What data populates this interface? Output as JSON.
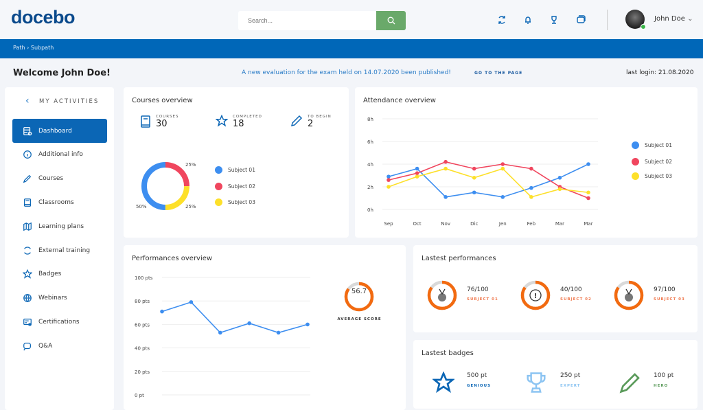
{
  "header": {
    "logo": "docebo",
    "search_placeholder": "Search...",
    "user_name": "John Doe"
  },
  "breadcrumb": {
    "path": "Path",
    "separator": "›",
    "subpath": "Subpath"
  },
  "welcome": {
    "title": "Welcome John Doe!",
    "notice": "A new evaluation for the exam held on 14.07.2020 been published!",
    "link": "GO TO THE PAGE",
    "last_login": "last login: 21.08.2020"
  },
  "sidebar": {
    "title": "MY ACTIVITIES",
    "items": [
      {
        "label": "Dashboard",
        "icon": "dashboard-icon"
      },
      {
        "label": "Additional info",
        "icon": "info-icon"
      },
      {
        "label": "Courses",
        "icon": "pencil-icon"
      },
      {
        "label": "Classrooms",
        "icon": "book-icon"
      },
      {
        "label": "Learning plans",
        "icon": "map-icon"
      },
      {
        "label": "External training",
        "icon": "sync-icon"
      },
      {
        "label": "Badges",
        "icon": "star-icon"
      },
      {
        "label": "Webinars",
        "icon": "globe-icon"
      },
      {
        "label": "Certifications",
        "icon": "certificate-icon"
      },
      {
        "label": "Q&A",
        "icon": "chat-icon"
      }
    ]
  },
  "courses": {
    "title": "Courses overview",
    "stats": [
      {
        "label": "COURSES",
        "value": "30"
      },
      {
        "label": "COMPLETED",
        "value": "18"
      },
      {
        "label": "TO BEGIN",
        "value": "2"
      }
    ]
  },
  "colors": {
    "blue": "#3d8ef0",
    "red": "#f0465e",
    "yellow": "#fde02a",
    "orange": "#f26a10",
    "primary": "#0b66b5",
    "green": "#6aa96a"
  },
  "chart_data": [
    {
      "type": "pie",
      "title": "",
      "categories": [
        "Subject 01",
        "Subject 02",
        "Subject 03"
      ],
      "values": [
        50,
        25,
        25
      ],
      "labels": [
        "50%",
        "25%",
        "25%"
      ]
    },
    {
      "type": "line",
      "title": "Attendance overview",
      "categories": [
        "Sep",
        "Oct",
        "Nov",
        "Dic",
        "Jen",
        "Feb",
        "Mar",
        "Mar"
      ],
      "yticks": [
        "0h",
        "2h",
        "4h",
        "6h",
        "8h"
      ],
      "ylim": [
        0,
        8
      ],
      "grid": true,
      "legend": "right",
      "series": [
        {
          "name": "Subject 01",
          "values": [
            2.9,
            3.6,
            1.1,
            1.5,
            1.1,
            1.9,
            2.8,
            4.0
          ]
        },
        {
          "name": "Subject 02",
          "values": [
            2.6,
            3.2,
            4.2,
            3.6,
            4.0,
            3.6,
            2.0,
            1.0
          ]
        },
        {
          "name": "Subject 03",
          "values": [
            2.0,
            2.9,
            3.6,
            2.8,
            3.6,
            1.1,
            1.8,
            1.5
          ]
        }
      ]
    },
    {
      "type": "line",
      "title": "Performances overview",
      "yticks": [
        "0 pt",
        "20 pts",
        "40 pts",
        "60 pts",
        "80 pts",
        "100 pts"
      ],
      "ylim": [
        0,
        100
      ],
      "grid": true,
      "series": [
        {
          "values": [
            71,
            79,
            53,
            61,
            53,
            60
          ]
        }
      ]
    }
  ],
  "performance": {
    "title": "Performances overview",
    "average": "56.7",
    "average_label": "AVERAGE SCORE",
    "average_fraction": 0.85
  },
  "latest_performances": {
    "title": "Lastest performances",
    "items": [
      {
        "score": "76/100",
        "subject": "SUBJECT 01",
        "icon": "medal-icon",
        "fraction": 0.85
      },
      {
        "score": "40/100",
        "subject": "SUBJECT 02",
        "icon": "alert-icon",
        "fraction": 0.85
      },
      {
        "score": "97/100",
        "subject": "SUBJECT 03",
        "icon": "medal-icon",
        "fraction": 0.85
      }
    ]
  },
  "latest_badges": {
    "title": "Lastest badges",
    "items": [
      {
        "points": "500 pt",
        "name": "GENIOUS",
        "color": "#0b66b5"
      },
      {
        "points": "250 pt",
        "name": "EXPERT",
        "color": "#8cc4f2"
      },
      {
        "points": "100 pt",
        "name": "HERO",
        "color": "#5a9a5a"
      }
    ]
  }
}
